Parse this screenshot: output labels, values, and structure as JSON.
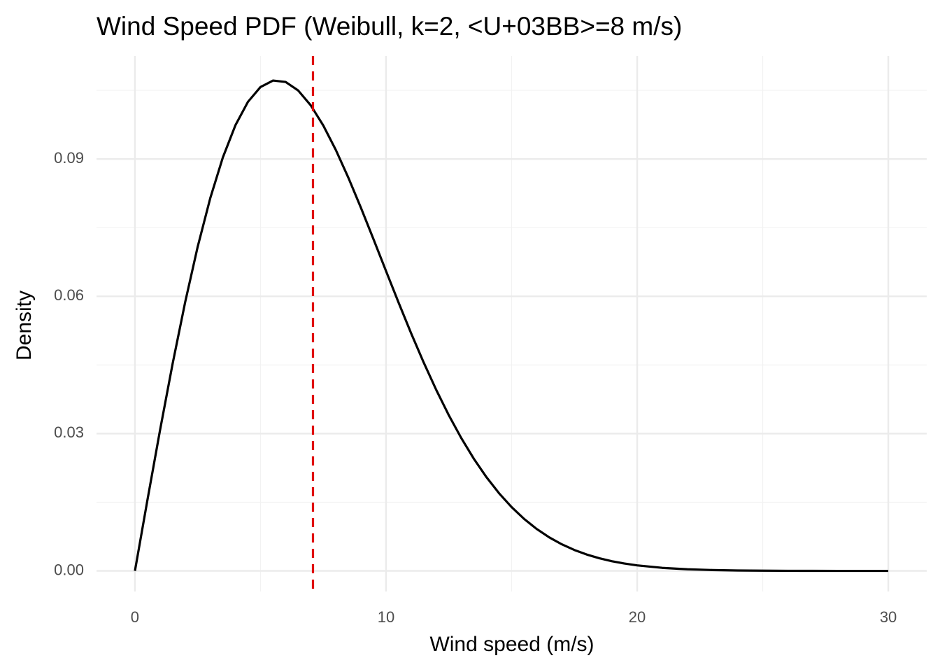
{
  "chart_data": {
    "type": "line",
    "title": "Wind Speed PDF (Weibull, k=2, <U+03BB>=8 m/s)",
    "x_label": "Wind speed (m/s)",
    "y_label": "Density",
    "x": [
      0,
      0.5,
      1,
      1.5,
      2,
      2.5,
      3,
      3.5,
      4,
      4.5,
      5,
      5.5,
      6,
      6.5,
      7,
      7.5,
      8,
      8.5,
      9,
      9.5,
      10,
      10.5,
      11,
      11.5,
      12,
      12.5,
      13,
      13.5,
      14,
      14.5,
      15,
      15.5,
      16,
      16.5,
      17,
      17.5,
      18,
      18.5,
      19,
      19.5,
      20,
      21,
      22,
      23,
      24,
      25,
      26,
      27,
      28,
      29,
      30
    ],
    "values": [
      0,
      0.015564,
      0.030766,
      0.045256,
      0.058713,
      0.070856,
      0.081452,
      0.090321,
      0.09735,
      0.102483,
      0.105723,
      0.107137,
      0.106834,
      0.104969,
      0.10173,
      0.097322,
      0.09197,
      0.085898,
      0.07933,
      0.072464,
      0.065503,
      0.058607,
      0.051896,
      0.045515,
      0.039525,
      0.034003,
      0.028979,
      0.024462,
      0.020462,
      0.016965,
      0.013937,
      0.011349,
      0.009158,
      0.007326,
      0.005809,
      0.004567,
      0.003561,
      0.002751,
      0.002108,
      0.001602,
      0.001206,
      0.000667,
      0.000357,
      0.000185,
      9.26e-05,
      4.48e-05,
      2.1e-05,
      9.5e-06,
      4.2e-06,
      1.8e-06,
      7e-07
    ],
    "color": "#000000",
    "vline": 7.09,
    "vline_color": "#e00000",
    "xlim": [
      -1.53,
      31.53
    ],
    "ylim": [
      -0.0045,
      0.1125
    ],
    "xticks": [
      0,
      10,
      20,
      30
    ],
    "yticks": [
      {
        "value": 0,
        "label": "0.00"
      },
      0.03,
      0.06,
      0.09
    ],
    "x_minor_grid": [
      5,
      15,
      25
    ],
    "y_minor_grid": [
      0.015,
      0.045,
      0.075,
      0.105
    ],
    "grid": true
  }
}
